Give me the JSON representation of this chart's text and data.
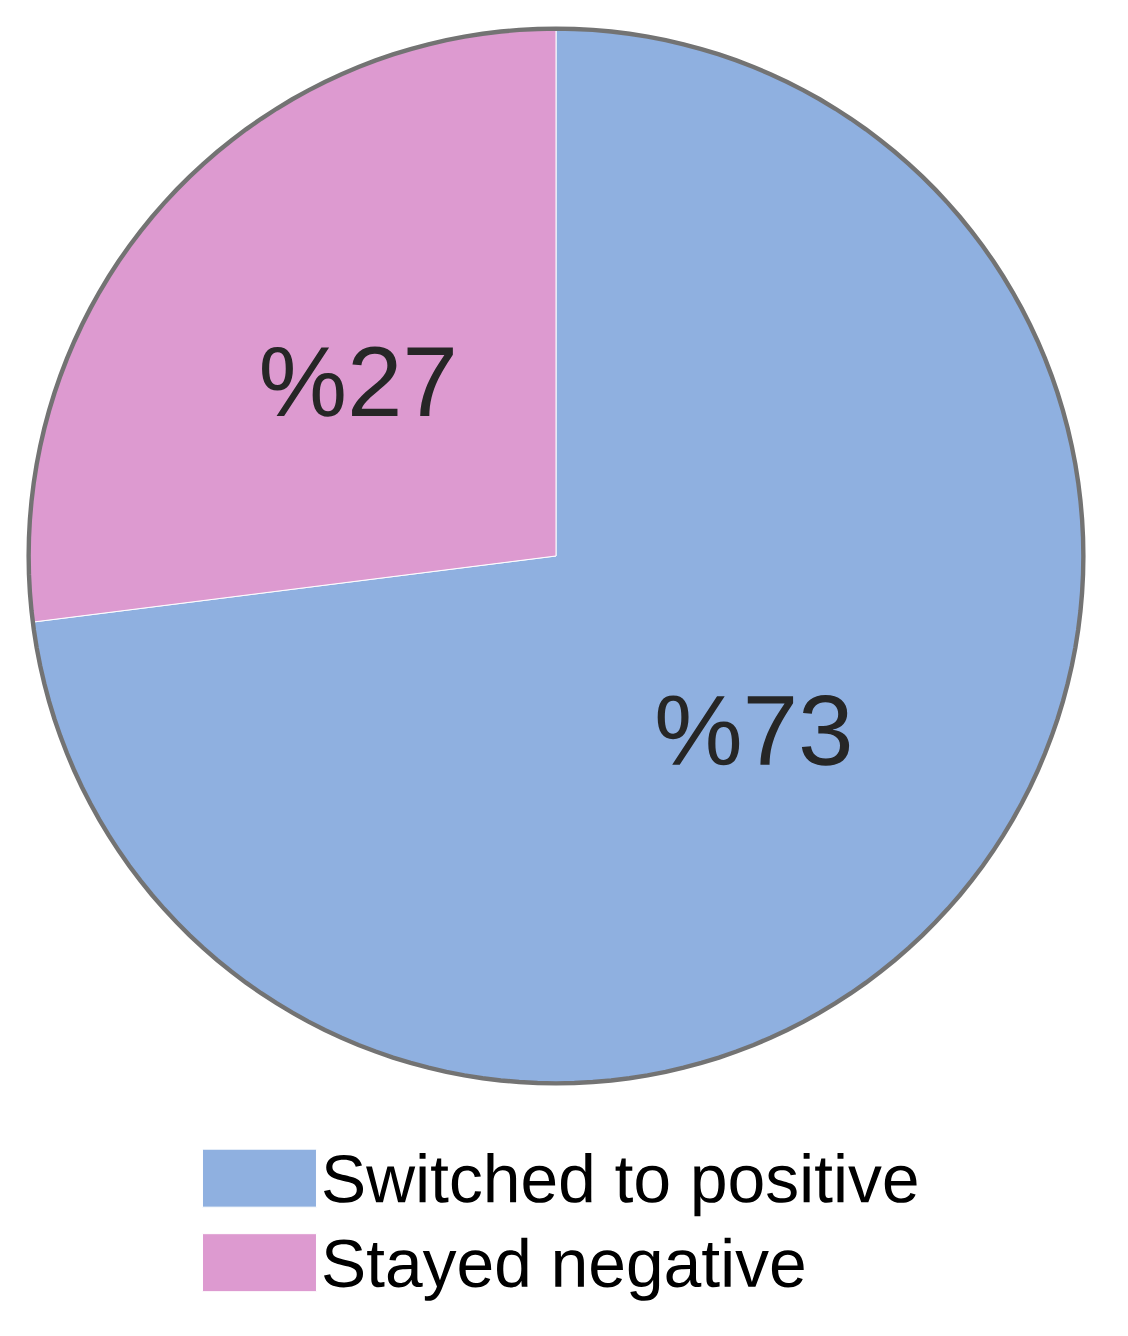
{
  "chart_data": {
    "type": "pie",
    "categories": [
      "Switched to positive",
      "Stayed negative"
    ],
    "values": [
      73,
      27
    ],
    "colors": [
      "#8fb0e0",
      "#dd9ad0"
    ],
    "value_labels": [
      "%73",
      "%27"
    ],
    "legend": "bottom"
  }
}
